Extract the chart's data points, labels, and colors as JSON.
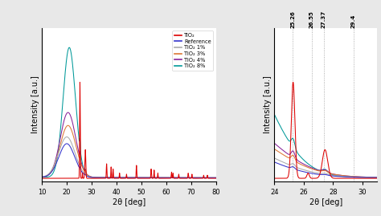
{
  "xlabel": "2θ [deg]",
  "ylabel": "Intensity [a.u.]",
  "xlim1": [
    10,
    80
  ],
  "xlim2": [
    24,
    31
  ],
  "legend": [
    "TiO₂",
    "Reference",
    "TiO₂ 1%",
    "TiO₂ 3%",
    "TiO₂ 4%",
    "TiO₂ 8%"
  ],
  "colors": [
    "#dd0000",
    "#3333cc",
    "#aaaaaa",
    "#dd7733",
    "#882299",
    "#009999"
  ],
  "vlines": [
    25.26,
    26.55,
    27.37,
    29.4
  ],
  "fig_bg": "#e8e8e8"
}
